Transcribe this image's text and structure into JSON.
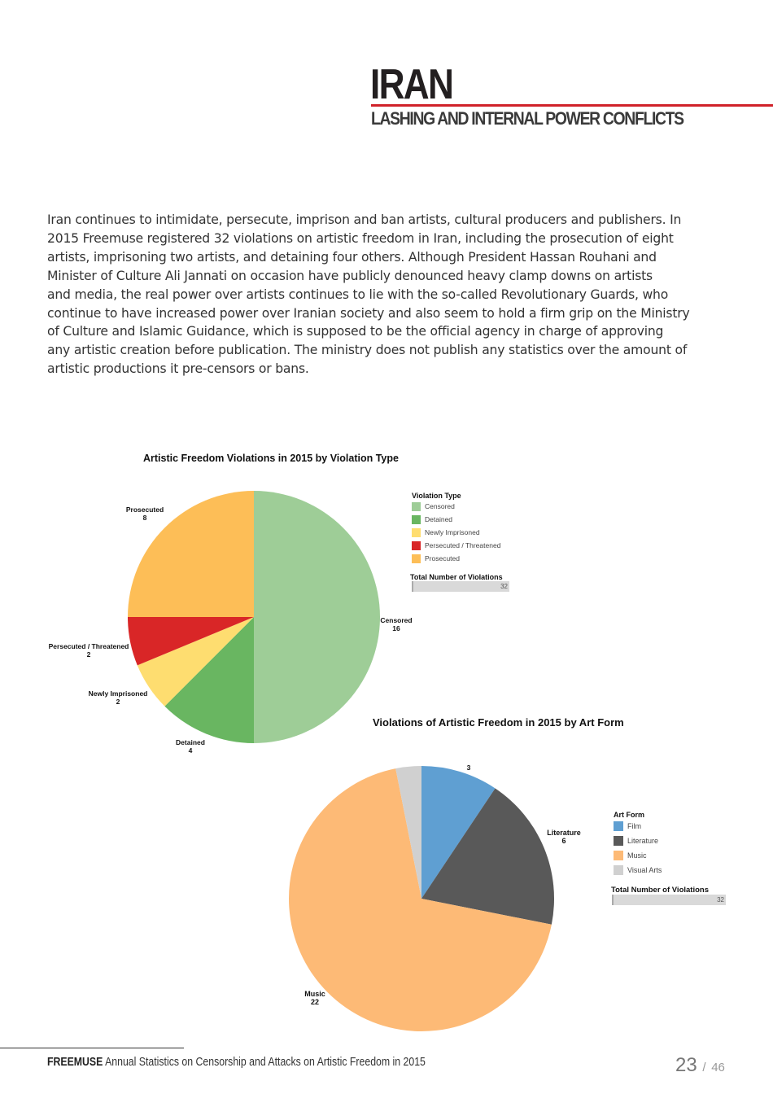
{
  "header": {
    "title": "IRAN",
    "subtitle": "LASHING AND INTERNAL POWER CONFLICTS",
    "rule_color": "#d0222a"
  },
  "body_lines": [
    "Iran continues to intimidate, persecute, imprison and ban artists, cultural producers and publishers. In",
    "2015 Freemuse registered 32 violations on artistic freedom in Iran, including the prosecution of eight",
    "artists, imprisoning two artists, and detaining four others. Although President Hassan Rouhani and",
    "Minister of Culture Ali Jannati on occasion have publicly denounced heavy clamp downs on artists",
    "and media, the real power over artists continues to lie with the so-called Revolutionary Guards, who",
    "continue to have increased power over Iranian society and also seem to hold a firm grip on the Ministry",
    "of Culture and Islamic Guidance, which is supposed to be the official agency in charge of approving",
    "any artistic creation before publication. The ministry does not publish any statistics over the amount of",
    "artistic productions it pre-censors or bans."
  ],
  "chart_data": [
    {
      "type": "pie",
      "title": "Artistic Freedom Violations in 2015 by Violation Type",
      "legend_title": "Violation Type",
      "legend_placement": "right",
      "categories": [
        "Censored",
        "Detained",
        "Newly Imprisoned",
        "Persecuted / Threatened",
        "Prosecuted"
      ],
      "values": [
        16,
        4,
        2,
        2,
        8
      ],
      "colors": [
        "#9ecd97",
        "#69b661",
        "#fedd70",
        "#d92627",
        "#fdbe57"
      ],
      "total_label": "Total Number of Violations",
      "total": 32
    },
    {
      "type": "pie",
      "title": "Violations of Artistic Freedom in 2015 by Art Form",
      "legend_title": "Art Form",
      "legend_placement": "right",
      "categories": [
        "Film",
        "Literature",
        "Music",
        "Visual Arts"
      ],
      "values": [
        3,
        6,
        22,
        1
      ],
      "slice_labels": [
        "3",
        "Literature\n6",
        "Music\n22",
        ""
      ],
      "colors": [
        "#5f9fd2",
        "#595959",
        "#fdba76",
        "#d0d0d0"
      ],
      "total_label": "Total Number of Violations",
      "total": 32
    }
  ],
  "footer": {
    "brand": "FREEMUSE",
    "text": "Annual Statistics on Censorship and Attacks on Artistic Freedom in 2015",
    "page": "23",
    "separator": "/",
    "total_pages": "46"
  }
}
